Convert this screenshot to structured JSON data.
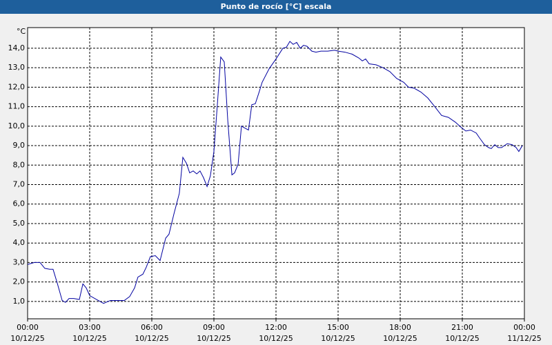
{
  "chart_data": {
    "type": "line",
    "title": "Punto de rocío [°C] escala",
    "y_unit": "°C",
    "xlim": [
      0,
      24
    ],
    "xticks": [
      {
        "value": 0,
        "label": "00:00"
      },
      {
        "value": 3,
        "label": "03:00"
      },
      {
        "value": 6,
        "label": "06:00"
      },
      {
        "value": 9,
        "label": "09:00"
      },
      {
        "value": 12,
        "label": "12:00"
      },
      {
        "value": 15,
        "label": "15:00"
      },
      {
        "value": 18,
        "label": "18:00"
      },
      {
        "value": 21,
        "label": "21:00"
      },
      {
        "value": 24,
        "label": "00:00"
      }
    ],
    "xtick_dates": [
      "10/12/25",
      "10/12/25",
      "10/12/25",
      "10/12/25",
      "10/12/25",
      "10/12/25",
      "10/12/25",
      "10/12/25",
      "11/12/25"
    ],
    "ylim": [
      0.11,
      15.06
    ],
    "yticks": [
      {
        "value": 1,
        "label": "1,0"
      },
      {
        "value": 2,
        "label": "2,0"
      },
      {
        "value": 3,
        "label": "3,0"
      },
      {
        "value": 4,
        "label": "4,0"
      },
      {
        "value": 5,
        "label": "5,0"
      },
      {
        "value": 6,
        "label": "6,0"
      },
      {
        "value": 7,
        "label": "7,0"
      },
      {
        "value": 8,
        "label": "8,0"
      },
      {
        "value": 9,
        "label": "9,0"
      },
      {
        "value": 10,
        "label": "10,0"
      },
      {
        "value": 11,
        "label": "11,0"
      },
      {
        "value": 12,
        "label": "12,0"
      },
      {
        "value": 13,
        "label": "13,0"
      },
      {
        "value": 14,
        "label": "14,0"
      }
    ],
    "grid": true,
    "x": [
      0,
      0.33,
      0.6,
      0.83,
      1.07,
      1.23,
      1.43,
      1.67,
      1.83,
      2,
      2.23,
      2.5,
      2.67,
      2.83,
      3,
      3.33,
      3.67,
      4,
      4.33,
      4.67,
      4.93,
      5.17,
      5.33,
      5.57,
      5.73,
      5.93,
      6.17,
      6.4,
      6.67,
      6.83,
      7.07,
      7.33,
      7.5,
      7.67,
      7.83,
      8,
      8.17,
      8.33,
      8.5,
      8.67,
      8.83,
      9,
      9.17,
      9.33,
      9.5,
      9.67,
      9.87,
      10,
      10.17,
      10.33,
      10.5,
      10.67,
      10.83,
      11,
      11.17,
      11.33,
      11.67,
      12,
      12.33,
      12.5,
      12.67,
      12.83,
      13,
      13.17,
      13.33,
      13.5,
      13.73,
      13.93,
      14.17,
      14.5,
      14.83,
      15,
      15.33,
      15.67,
      16,
      16.17,
      16.33,
      16.5,
      16.83,
      17.17,
      17.5,
      17.83,
      18.17,
      18.4,
      18.67,
      19,
      19.33,
      19.67,
      20,
      20.33,
      20.67,
      20.93,
      21.17,
      21.4,
      21.67,
      21.83,
      22.07,
      22.27,
      22.4,
      22.57,
      22.73,
      22.9,
      23.17,
      23.4,
      23.6,
      23.73,
      23.9
    ],
    "series": [
      {
        "color": "#0000a0",
        "values": [
          2.9,
          3.0,
          3.0,
          2.7,
          2.65,
          2.65,
          1.95,
          1.05,
          0.95,
          1.15,
          1.15,
          1.1,
          1.9,
          1.7,
          1.3,
          1.1,
          0.9,
          1.05,
          1.05,
          1.05,
          1.25,
          1.7,
          2.25,
          2.4,
          2.75,
          3.3,
          3.35,
          3.1,
          4.25,
          4.45,
          5.5,
          6.55,
          8.4,
          8.1,
          7.6,
          7.7,
          7.55,
          7.7,
          7.35,
          6.9,
          7.45,
          8.7,
          11.15,
          13.55,
          13.3,
          10.3,
          7.5,
          7.6,
          8.05,
          10.0,
          9.9,
          9.8,
          11.1,
          11.15,
          11.7,
          12.25,
          12.95,
          13.45,
          14.0,
          14.05,
          14.35,
          14.2,
          14.3,
          14.0,
          14.15,
          14.1,
          13.85,
          13.8,
          13.85,
          13.85,
          13.9,
          13.85,
          13.8,
          13.7,
          13.5,
          13.35,
          13.45,
          13.2,
          13.15,
          13.0,
          12.8,
          12.45,
          12.25,
          12.0,
          11.95,
          11.75,
          11.45,
          11.0,
          10.55,
          10.45,
          10.2,
          9.95,
          9.75,
          9.8,
          9.65,
          9.4,
          9.05,
          8.9,
          8.85,
          9.05,
          8.9,
          8.9,
          9.1,
          9.05,
          8.9,
          8.7,
          9.0
        ]
      }
    ]
  }
}
